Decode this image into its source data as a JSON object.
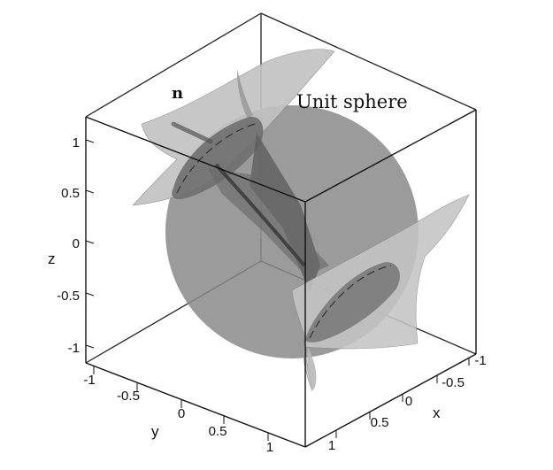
{
  "annotations": {
    "normal_label": "n",
    "sphere_label": "Unit sphere"
  },
  "axes": {
    "z": {
      "name": "z",
      "ticks": [
        "1",
        "0.5",
        "0",
        "-0.5",
        "-1"
      ]
    },
    "y": {
      "name": "y",
      "ticks": [
        "-1",
        "-0.5",
        "0",
        "0.5",
        "1"
      ]
    },
    "x": {
      "name": "x",
      "ticks": [
        "-1",
        "-0.5",
        "0",
        "0.5",
        "1"
      ]
    }
  },
  "colors": {
    "background": "#ffffff",
    "box_edges": "#111111",
    "sphere": "#8a8a8a",
    "cone_light": "#c4c4c4",
    "cone_mid": "#a6a6a6",
    "cone_dark": "#6e6e6e"
  }
}
